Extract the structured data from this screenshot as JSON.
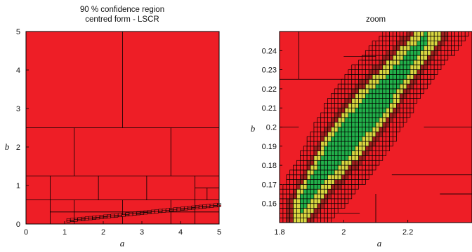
{
  "colors": {
    "outer": "#ee1e26",
    "boundary_dark": "#a0201e",
    "boundary_yellow": "#d9d640",
    "inner": "#22b04a",
    "edge": "#000000"
  },
  "chart_data": [
    {
      "type": "box-partition",
      "title_lines": [
        "90 % confidence region",
        "centred form - LSCR"
      ],
      "xlabel": "a",
      "ylabel": "b",
      "xlim": [
        0,
        5
      ],
      "ylim": [
        0,
        5
      ],
      "xticks": [
        "0",
        "1",
        "2",
        "3",
        "4",
        "5"
      ],
      "yticks": [
        "0",
        "1",
        "2",
        "3",
        "4",
        "5"
      ],
      "region_band": {
        "description_points": [
          [
            1.1,
            0.05
          ],
          [
            5.0,
            0.45
          ]
        ]
      }
    },
    {
      "type": "box-partition",
      "title_lines": [
        "zoom"
      ],
      "xlabel": "a",
      "ylabel": "b",
      "xlim": [
        1.8,
        2.4
      ],
      "ylim": [
        0.15,
        0.25
      ],
      "xticks": [
        "1.8",
        "2",
        "2.2"
      ],
      "yticks": [
        "0.16",
        "0.17",
        "0.18",
        "0.19",
        "0.2",
        "0.21",
        "0.22",
        "0.23",
        "0.24"
      ],
      "region_centerline": [
        [
          1.88,
          0.162
        ],
        [
          1.95,
          0.182
        ],
        [
          2.05,
          0.202
        ],
        [
          2.15,
          0.222
        ],
        [
          2.24,
          0.243
        ]
      ]
    }
  ]
}
